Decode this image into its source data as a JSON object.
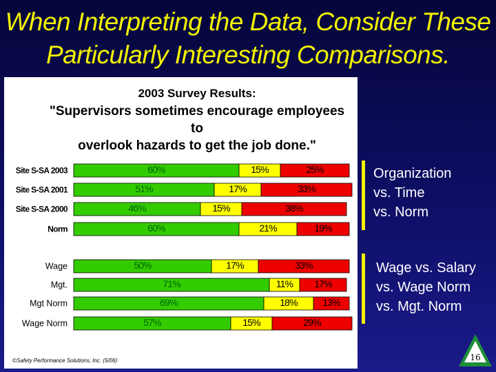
{
  "slide": {
    "title_line1": "When Interpreting the Data, Consider These",
    "title_line2": "Particularly Interesting Comparisons.",
    "page_number": "16",
    "copyright": "©Safety Performance Solutions, Inc. (5/06)"
  },
  "annotations": {
    "group1": [
      "Organization",
      "vs. Time",
      "vs. Norm"
    ],
    "group2": [
      "Wage vs. Salary",
      "vs. Wage Norm",
      "vs. Mgt. Norm"
    ]
  },
  "colors": {
    "green": "#33cc00",
    "yellow": "#ffff00",
    "red": "#ee0000",
    "label_green": "#006400",
    "title": "#f2f200",
    "bracket": "#f2f200"
  },
  "chart_data": {
    "type": "bar",
    "stacked": true,
    "orientation": "horizontal",
    "title": "2003 Survey Results:",
    "subtitle_line1": "\"Supervisors sometimes encourage employees to",
    "subtitle_line2": "overlook hazards to get the job done.\"",
    "xlim": [
      0,
      100
    ],
    "categories": [
      "Site S-SA 2003",
      "Site S-SA 2001",
      "Site S-SA 2000",
      "Norm",
      "Wage",
      "Mgt.",
      "Mgt Norm",
      "Wage Norm"
    ],
    "series": [
      {
        "color": "green",
        "values": [
          60,
          51,
          46,
          60,
          50,
          71,
          69,
          57
        ]
      },
      {
        "color": "yellow",
        "values": [
          15,
          17,
          15,
          21,
          17,
          11,
          18,
          15
        ]
      },
      {
        "color": "red",
        "values": [
          25,
          33,
          38,
          19,
          33,
          17,
          13,
          29
        ]
      }
    ],
    "data_labels": [
      [
        "60%",
        "15%",
        "25%"
      ],
      [
        "51%",
        "17%",
        "33%"
      ],
      [
        "46%",
        "15%",
        "38%"
      ],
      [
        "60%",
        "21%",
        "19%"
      ],
      [
        "50%",
        "17%",
        "33%"
      ],
      [
        "71%",
        "11%",
        "17%"
      ],
      [
        "69%",
        "18%",
        "13%"
      ],
      [
        "57%",
        "15%",
        "29%"
      ]
    ]
  }
}
